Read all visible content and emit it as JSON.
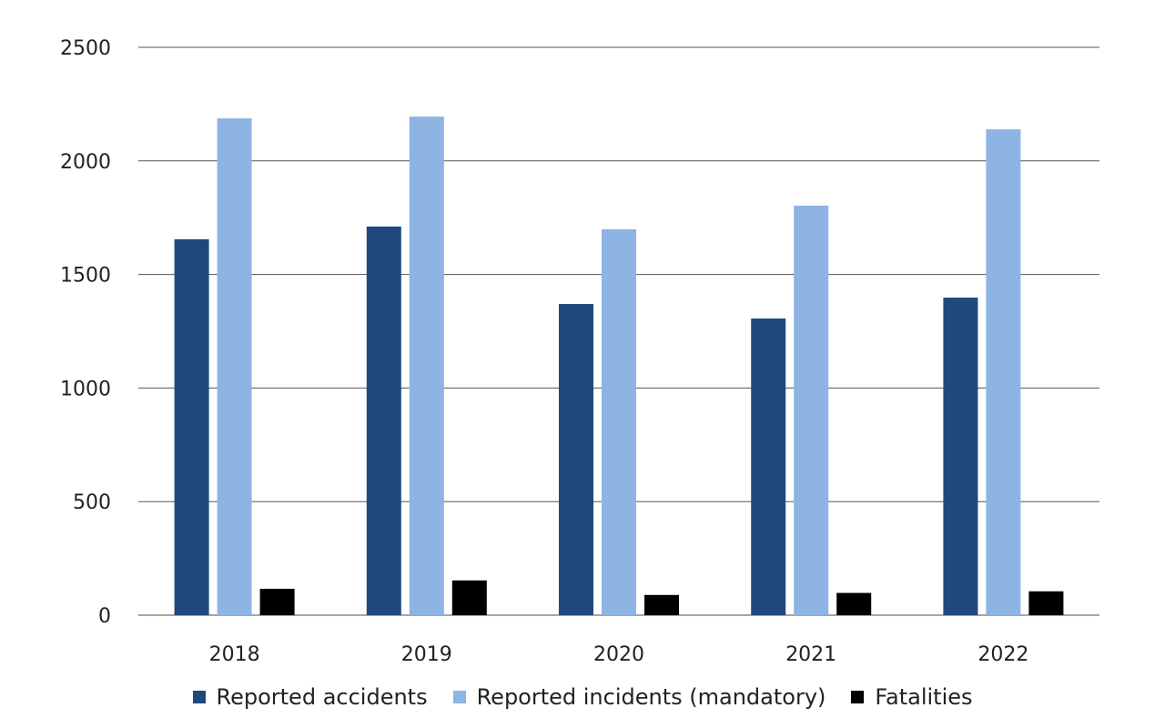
{
  "chart_data": {
    "type": "bar",
    "categories": [
      "2018",
      "2019",
      "2020",
      "2021",
      "2022"
    ],
    "series": [
      {
        "name": "Reported accidents",
        "color": "#1f497d",
        "values": [
          1655,
          1711,
          1370,
          1306,
          1398
        ]
      },
      {
        "name": "Reported incidents (mandatory)",
        "color": "#8eb4e3",
        "values": [
          2187,
          2195,
          1699,
          1803,
          2139
        ]
      },
      {
        "name": "Fatalities",
        "color": "#000000",
        "values": [
          116,
          153,
          89,
          98,
          105
        ]
      }
    ],
    "title": "",
    "xlabel": "",
    "ylabel": "",
    "ylim": [
      0,
      2500
    ],
    "yticks": [
      "0",
      "500",
      "1000",
      "1500",
      "2000",
      "2500"
    ],
    "grid": true,
    "legend_position": "bottom"
  }
}
